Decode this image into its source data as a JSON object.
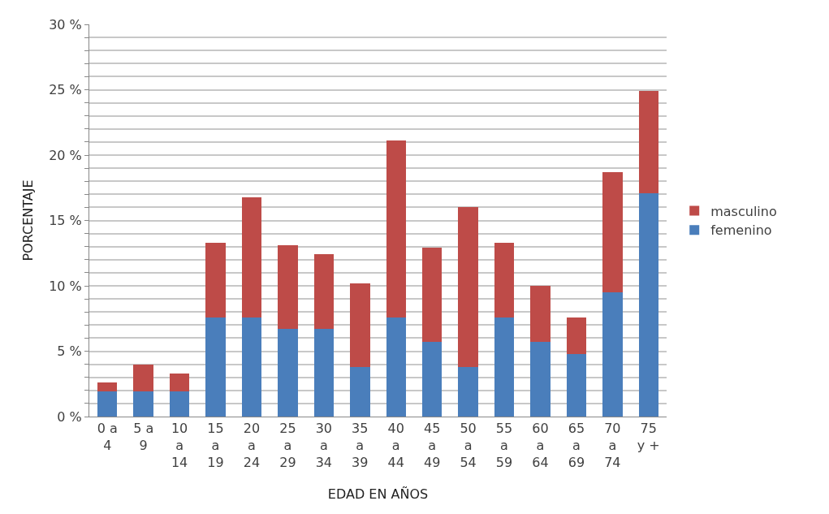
{
  "chart_data": {
    "type": "bar",
    "stacked": true,
    "xlabel": "EDAD EN AÑOS",
    "ylabel": "PORCENTAJE",
    "categories": [
      "0 a 4",
      "5 a 9",
      "10 a 14",
      "15 a 19",
      "20 a 24",
      "25 a 29",
      "30 a 34",
      "35 a 39",
      "40 a 44",
      "45 a 49",
      "50 a 54",
      "55 a 59",
      "60 a 64",
      "65 a 69",
      "70 a 74",
      "75 y +"
    ],
    "series": [
      {
        "name": "femenino",
        "color": "#4a7ebb",
        "values": [
          1.9,
          1.9,
          1.9,
          7.6,
          7.6,
          6.7,
          6.7,
          3.8,
          7.6,
          5.7,
          3.8,
          7.6,
          5.7,
          4.8,
          9.5,
          17.1
        ]
      },
      {
        "name": "masculino",
        "color": "#be4b48",
        "values": [
          0.7,
          2.1,
          1.4,
          5.7,
          9.2,
          6.4,
          5.7,
          6.4,
          13.5,
          7.2,
          12.2,
          5.7,
          4.3,
          2.8,
          9.2,
          7.8
        ]
      }
    ],
    "ylim": [
      0,
      30
    ],
    "yticks": [
      {
        "value": 0,
        "label": "0 %"
      },
      {
        "value": 1,
        "label": null
      },
      {
        "value": 2,
        "label": null
      },
      {
        "value": 3,
        "label": null
      },
      {
        "value": 4,
        "label": null
      },
      {
        "value": 5,
        "label": "5 %"
      },
      {
        "value": 6,
        "label": null
      },
      {
        "value": 7,
        "label": null
      },
      {
        "value": 8,
        "label": null
      },
      {
        "value": 9,
        "label": null
      },
      {
        "value": 10,
        "label": "10 %"
      },
      {
        "value": 11,
        "label": null
      },
      {
        "value": 12,
        "label": null
      },
      {
        "value": 13,
        "label": null
      },
      {
        "value": 14,
        "label": null
      },
      {
        "value": 15,
        "label": "15 %"
      },
      {
        "value": 16,
        "label": null
      },
      {
        "value": 17,
        "label": null
      },
      {
        "value": 18,
        "label": null
      },
      {
        "value": 19,
        "label": null
      },
      {
        "value": 20,
        "label": "20 %"
      },
      {
        "value": 21,
        "label": null
      },
      {
        "value": 22,
        "label": null
      },
      {
        "value": 23,
        "label": null
      },
      {
        "value": 24,
        "label": null
      },
      {
        "value": 25,
        "label": "25 %"
      },
      {
        "value": 26,
        "label": null
      },
      {
        "value": 27,
        "label": null
      },
      {
        "value": 28,
        "label": null
      },
      {
        "value": 29,
        "label": null
      },
      {
        "value": 30,
        "label": "30 %"
      }
    ],
    "grid": "y",
    "legend": "right"
  }
}
